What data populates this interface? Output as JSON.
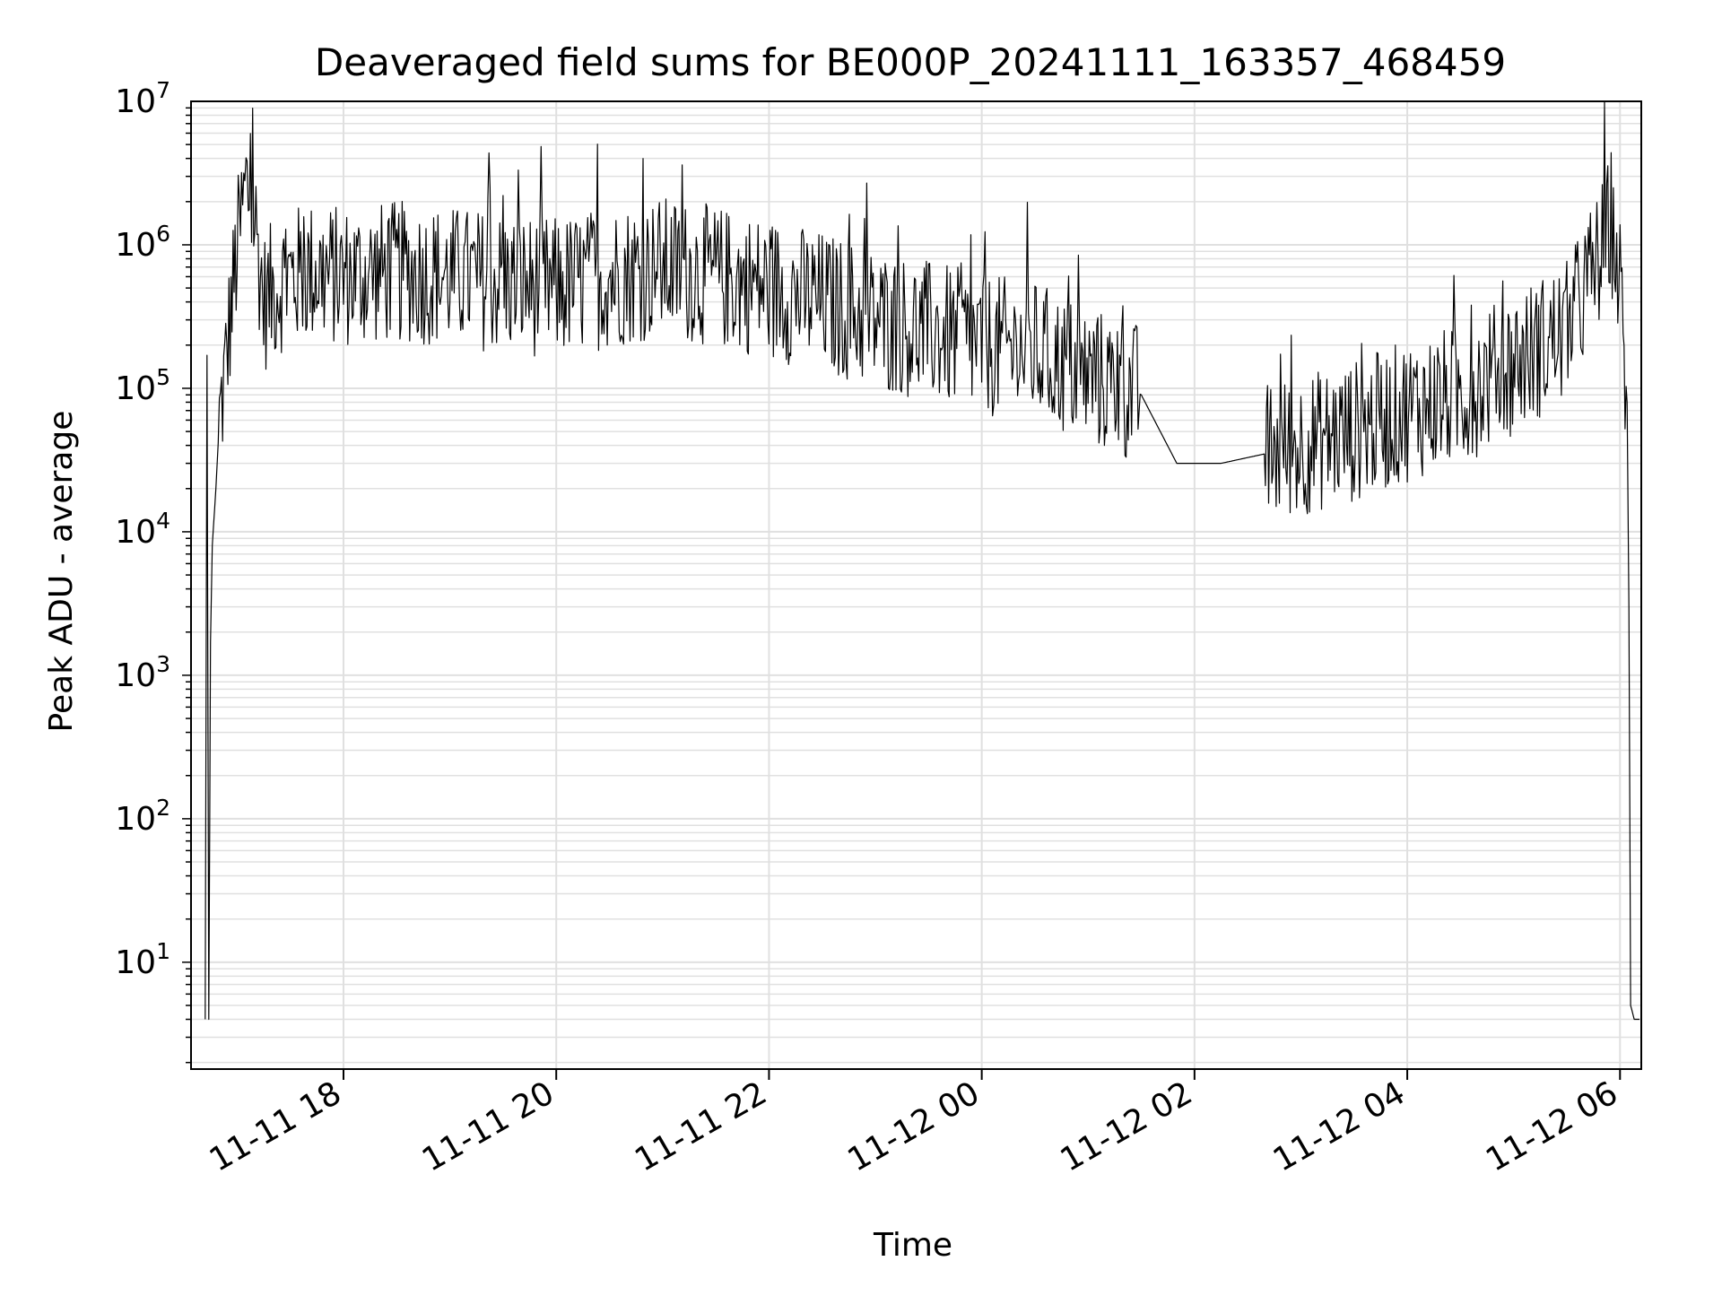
{
  "chart_data": {
    "type": "line",
    "title": "Deaveraged field sums for BE000P_20241111_163357_468459",
    "xlabel": "Time",
    "ylabel": "Peak ADU - average",
    "yscale": "log",
    "ylim": [
      1.8,
      10000000
    ],
    "xlim": [
      "2024-11-11 16:34",
      "2024-11-12 06:12"
    ],
    "grid": true,
    "legend": "none",
    "colors": {
      "line": "#000000",
      "grid": "#e0e0e0",
      "axes": "#000000"
    },
    "x_ticks": [
      {
        "value": "2024-11-11 18:00",
        "label": "11-11 18"
      },
      {
        "value": "2024-11-11 20:00",
        "label": "11-11 20"
      },
      {
        "value": "2024-11-11 22:00",
        "label": "11-11 22"
      },
      {
        "value": "2024-11-12 00:00",
        "label": "11-12 00"
      },
      {
        "value": "2024-11-12 02:00",
        "label": "11-12 02"
      },
      {
        "value": "2024-11-12 04:00",
        "label": "11-12 04"
      },
      {
        "value": "2024-11-12 06:00",
        "label": "11-12 06"
      }
    ],
    "y_ticks": [
      {
        "value": 10,
        "base": "10",
        "exp": "1"
      },
      {
        "value": 100,
        "base": "10",
        "exp": "2"
      },
      {
        "value": 1000,
        "base": "10",
        "exp": "3"
      },
      {
        "value": 10000,
        "base": "10",
        "exp": "4"
      },
      {
        "value": 100000,
        "base": "10",
        "exp": "5"
      },
      {
        "value": 1000000,
        "base": "10",
        "exp": "6"
      },
      {
        "value": 10000000,
        "base": "10",
        "exp": "7"
      }
    ],
    "series": [
      {
        "points": [
          [
            "2024-11-11 16:42",
            4
          ],
          [
            "2024-11-11 16:43",
            170000
          ],
          [
            "2024-11-11 16:44",
            4
          ],
          [
            "2024-11-11 16:45",
            1700
          ],
          [
            "2024-11-11 16:46",
            8000
          ],
          [
            "2024-11-11 16:48",
            20000
          ],
          [
            "2024-11-11 16:50",
            60000
          ],
          [
            "2024-11-11 16:53",
            120000
          ],
          [
            "2024-11-11 16:56",
            300000
          ],
          [
            "2024-11-11 17:00",
            900000
          ],
          [
            "2024-11-11 17:05",
            2600000
          ],
          [
            "2024-11-11 17:10",
            1500000
          ],
          [
            "2024-11-11 17:15",
            400000
          ],
          [
            "2024-11-11 17:25",
            550000
          ],
          [
            "2024-11-11 17:40",
            650000
          ],
          [
            "2024-11-11 18:00",
            600000
          ],
          [
            "2024-11-11 18:30",
            650000
          ],
          [
            "2024-11-11 19:00",
            600000
          ],
          [
            "2024-11-11 19:30",
            550000
          ],
          [
            "2024-11-11 20:00",
            500000
          ],
          [
            "2024-11-11 20:30",
            600000
          ],
          [
            "2024-11-11 21:00",
            700000
          ],
          [
            "2024-11-11 21:30",
            600000
          ],
          [
            "2024-11-11 22:00",
            500000
          ],
          [
            "2024-11-11 22:30",
            400000
          ],
          [
            "2024-11-11 23:00",
            300000
          ],
          [
            "2024-11-11 23:30",
            250000
          ],
          [
            "2024-11-12 00:00",
            200000
          ],
          [
            "2024-11-12 00:30",
            180000
          ],
          [
            "2024-11-12 01:00",
            120000
          ],
          [
            "2024-11-12 01:30",
            90000
          ],
          [
            "2024-11-12 01:50",
            30000
          ],
          [
            "2024-11-12 02:15",
            30000
          ],
          [
            "2024-11-12 02:40",
            35000
          ],
          [
            "2024-11-12 03:00",
            40000
          ],
          [
            "2024-11-12 03:30",
            50000
          ],
          [
            "2024-11-12 04:00",
            70000
          ],
          [
            "2024-11-12 04:30",
            90000
          ],
          [
            "2024-11-12 05:00",
            150000
          ],
          [
            "2024-11-12 05:30",
            250000
          ],
          [
            "2024-11-12 05:50",
            900000
          ],
          [
            "2024-11-12 05:55",
            1500000
          ],
          [
            "2024-11-12 06:00",
            500000
          ],
          [
            "2024-11-12 06:04",
            80000
          ],
          [
            "2024-11-12 06:05",
            3000
          ],
          [
            "2024-11-12 06:06",
            5
          ],
          [
            "2024-11-12 06:08",
            4
          ],
          [
            "2024-11-12 06:11",
            4
          ]
        ]
      }
    ]
  }
}
